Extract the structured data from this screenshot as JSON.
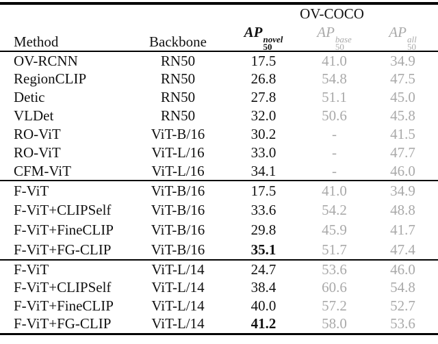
{
  "table": {
    "group_header": "OV-COCO",
    "columns": {
      "method": "Method",
      "backbone": "Backbone",
      "ap_novel": {
        "base": "AP",
        "sub": "50",
        "sup": "novel"
      },
      "ap_base": {
        "base": "AP",
        "sub": "50",
        "sup": "base"
      },
      "ap_all": {
        "base": "AP",
        "sub": "50",
        "sup": "all"
      }
    },
    "colors": {
      "text": "#111111",
      "muted_gray": "#a9a9a9",
      "rule": "#000000"
    },
    "rows": [
      {
        "method": "OV-RCNN",
        "backbone": "RN50",
        "novel": "17.5",
        "base": "41.0",
        "all": "34.9"
      },
      {
        "method": "RegionCLIP",
        "backbone": "RN50",
        "novel": "26.8",
        "base": "54.8",
        "all": "47.5"
      },
      {
        "method": "Detic",
        "backbone": "RN50",
        "novel": "27.8",
        "base": "51.1",
        "all": "45.0"
      },
      {
        "method": "VLDet",
        "backbone": "RN50",
        "novel": "32.0",
        "base": "50.6",
        "all": "45.8"
      },
      {
        "method": "RO-ViT",
        "backbone": "ViT-B/16",
        "novel": "30.2",
        "base": "-",
        "all": "41.5"
      },
      {
        "method": "RO-ViT",
        "backbone": "ViT-L/16",
        "novel": "33.0",
        "base": "-",
        "all": "47.7"
      },
      {
        "method": "CFM-ViT",
        "backbone": "ViT-L/16",
        "novel": "34.1",
        "base": "-",
        "all": "46.0"
      },
      {
        "method": "F-ViT",
        "backbone": "ViT-B/16",
        "novel": "17.5",
        "base": "41.0",
        "all": "34.9"
      },
      {
        "method": "F-ViT+CLIPSelf",
        "backbone": "ViT-B/16",
        "novel": "33.6",
        "base": "54.2",
        "all": "48.8"
      },
      {
        "method": "F-ViT+FineCLIP",
        "backbone": "ViT-B/16",
        "novel": "29.8",
        "base": "45.9",
        "all": "41.7"
      },
      {
        "method": "F-ViT+FG-CLIP",
        "backbone": "ViT-B/16",
        "novel": "35.1",
        "base": "51.7",
        "all": "47.4"
      },
      {
        "method": "F-ViT",
        "backbone": "ViT-L/14",
        "novel": "24.7",
        "base": "53.6",
        "all": "46.0"
      },
      {
        "method": "F-ViT+CLIPSelf",
        "backbone": "ViT-L/14",
        "novel": "38.4",
        "base": "60.6",
        "all": "54.8"
      },
      {
        "method": "F-ViT+FineCLIP",
        "backbone": "ViT-L/14",
        "novel": "40.0",
        "base": "57.2",
        "all": "52.7"
      },
      {
        "method": "F-ViT+FG-CLIP",
        "backbone": "ViT-L/14",
        "novel": "41.2",
        "base": "58.0",
        "all": "53.6"
      }
    ]
  }
}
